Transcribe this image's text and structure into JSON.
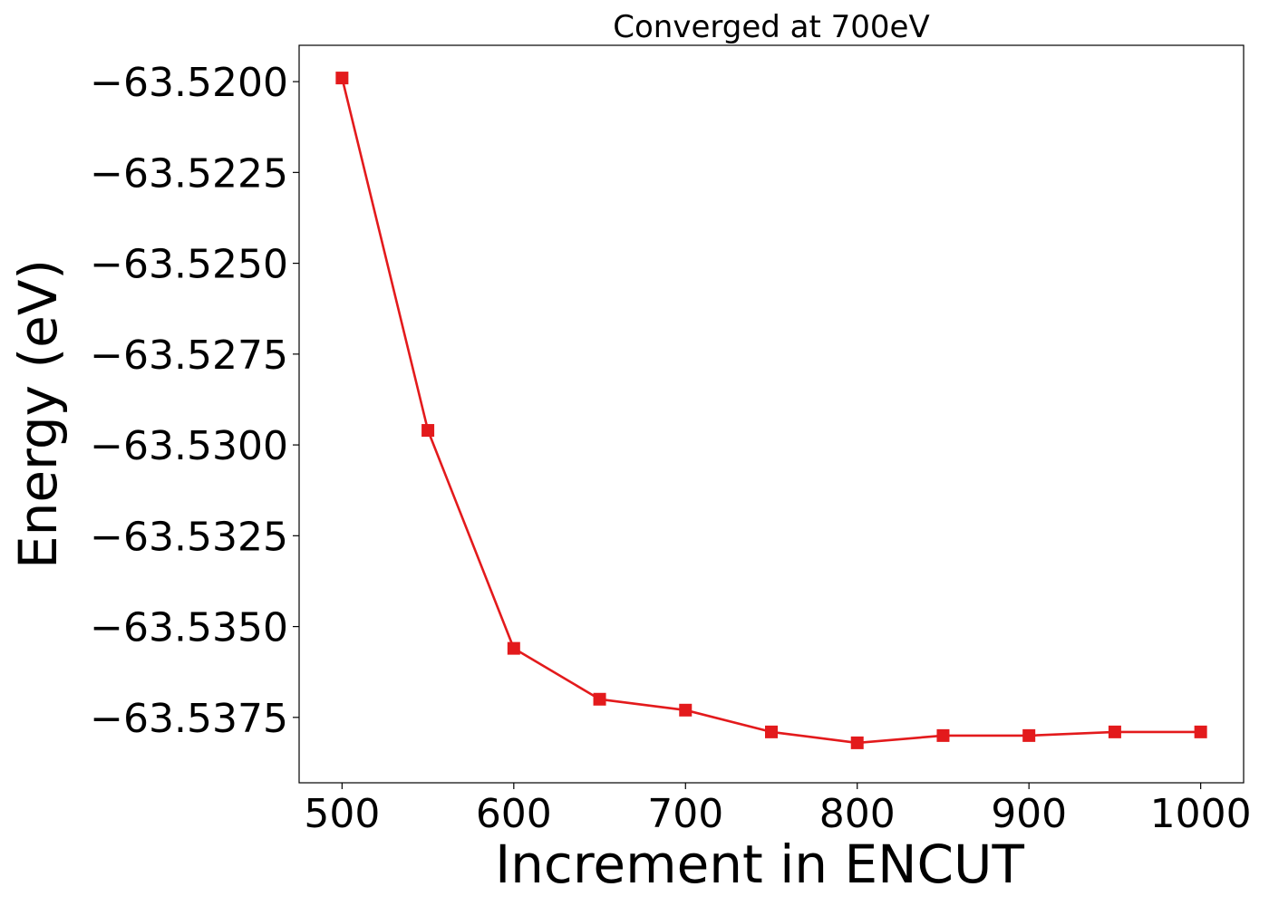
{
  "chart_data": {
    "type": "line",
    "title": "Converged at 700eV",
    "xlabel": "Increment in ENCUT",
    "ylabel": "Energy (eV)",
    "xlim": [
      475,
      1025
    ],
    "ylim": [
      -63.5393,
      -63.519
    ],
    "xticks": [
      500,
      600,
      700,
      800,
      900,
      1000
    ],
    "xtick_labels": [
      "500",
      "600",
      "700",
      "800",
      "900",
      "1000"
    ],
    "yticks": [
      -63.52,
      -63.5225,
      -63.525,
      -63.5275,
      -63.53,
      -63.5325,
      -63.535,
      -63.5375
    ],
    "ytick_labels": [
      "−63.5200",
      "−63.5225",
      "−63.5250",
      "−63.5275",
      "−63.5300",
      "−63.5325",
      "−63.5350",
      "−63.5375"
    ],
    "grid": false,
    "series": [
      {
        "marker": "square",
        "color": "#e31a1c",
        "x": [
          500,
          550,
          600,
          650,
          700,
          750,
          800,
          850,
          900,
          950,
          1000
        ],
        "y": [
          -63.5199,
          -63.5296,
          -63.5356,
          -63.537,
          -63.5373,
          -63.5379,
          -63.5382,
          -63.538,
          -63.538,
          -63.5379,
          -63.5379
        ]
      }
    ]
  }
}
